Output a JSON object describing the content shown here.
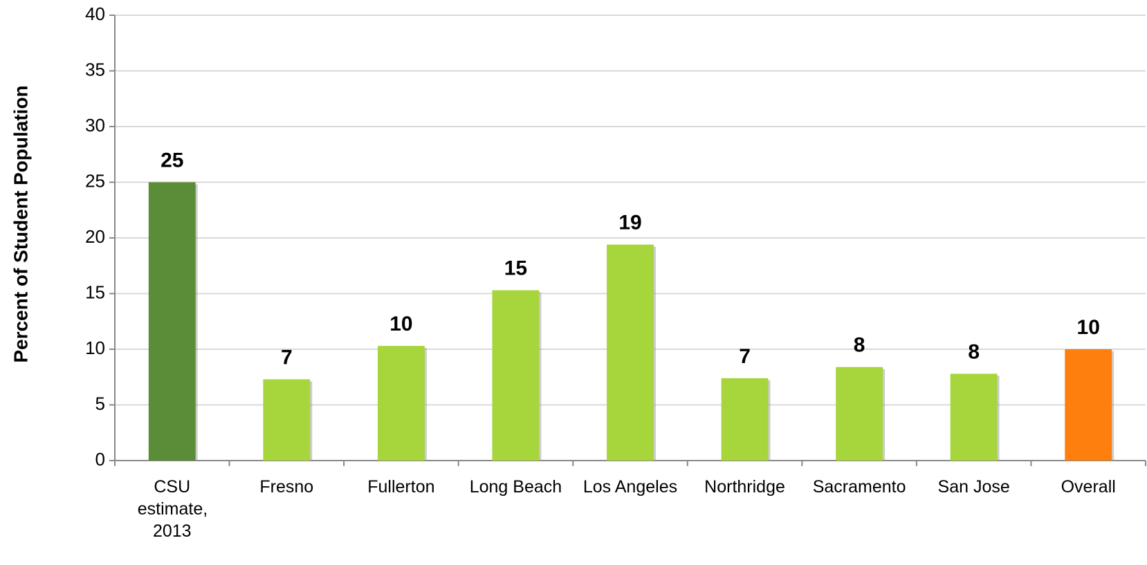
{
  "chart_data": {
    "type": "bar",
    "y_label": "Percent of Student Population",
    "categories": [
      "CSU estimate, 2013",
      "Fresno",
      "Fullerton",
      "Long Beach",
      "Los Angeles",
      "Northridge",
      "Sacramento",
      "San Jose",
      "Overall"
    ],
    "values": [
      25,
      7.3,
      10.3,
      15.3,
      19.4,
      7.4,
      8.4,
      7.8,
      10
    ],
    "value_labels": [
      "25",
      "7",
      "10",
      "15",
      "19",
      "7",
      "8",
      "8",
      "10"
    ],
    "colors": [
      "#5b8c37",
      "#a6d63c",
      "#a6d63c",
      "#a6d63c",
      "#a6d63c",
      "#a6d63c",
      "#a6d63c",
      "#a6d63c",
      "#ff7f0e"
    ],
    "ylim": [
      0,
      40
    ],
    "yticks": [
      0,
      5,
      10,
      15,
      20,
      25,
      30,
      35,
      40
    ],
    "grid": true
  }
}
